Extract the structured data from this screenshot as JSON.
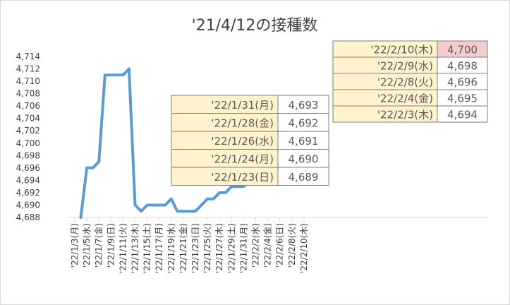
{
  "chart_data": {
    "type": "line",
    "title": "'21/4/12の接種数",
    "xlabel": "",
    "ylabel": "",
    "ylim": [
      4688,
      4714
    ],
    "y_ticks": [
      4688,
      4690,
      4692,
      4694,
      4696,
      4698,
      4700,
      4702,
      4704,
      4706,
      4708,
      4710,
      4712,
      4714
    ],
    "y_tick_labels": [
      "4,688",
      "4,690",
      "4,692",
      "4,694",
      "4,696",
      "4,698",
      "4,700",
      "4,702",
      "4,704",
      "4,706",
      "4,708",
      "4,710",
      "4,712",
      "4,714"
    ],
    "x_tick_labels": [
      "'22/1/3(月)",
      "'22/1/5(水)",
      "'22/1/7(金)",
      "'22/1/9(日)",
      "'22/1/11(火)",
      "'22/1/13(木)",
      "'22/1/15(土)",
      "'22/1/17(月)",
      "'22/1/19(水)",
      "'22/1/21(金)",
      "'22/1/23(日)",
      "'22/1/25(火)",
      "'22/1/27(木)",
      "'22/1/29(土)",
      "'22/1/31(月)",
      "'22/2/2(水)",
      "'22/2/4(金)",
      "'22/2/6(日)",
      "'22/2/8(火)",
      "'22/2/10(木)"
    ],
    "series": [
      {
        "x": [
          "2022-01-04",
          "2022-01-05",
          "2022-01-06",
          "2022-01-07",
          "2022-01-08",
          "2022-01-09",
          "2022-01-10",
          "2022-01-11",
          "2022-01-12",
          "2022-01-13",
          "2022-01-14",
          "2022-01-15",
          "2022-01-16",
          "2022-01-17",
          "2022-01-18",
          "2022-01-19",
          "2022-01-20",
          "2022-01-21",
          "2022-01-22",
          "2022-01-23",
          "2022-01-24",
          "2022-01-25",
          "2022-01-26",
          "2022-01-27",
          "2022-01-28",
          "2022-01-29",
          "2022-01-30",
          "2022-01-31",
          "2022-02-01",
          "2022-02-02",
          "2022-02-03",
          "2022-02-04",
          "2022-02-05",
          "2022-02-06",
          "2022-02-07",
          "2022-02-08",
          "2022-02-09",
          "2022-02-10"
        ],
        "values": [
          4688,
          4696,
          4696,
          4697,
          4711,
          4711,
          4711,
          4711,
          4712,
          4690,
          4689,
          4690,
          4690,
          4690,
          4690,
          4691,
          4689,
          4689,
          4689,
          4689,
          4690,
          4691,
          4691,
          4692,
          4692,
          4693,
          4693,
          4693,
          4694,
          4694,
          4694,
          4695,
          4696,
          4696,
          4696,
          4696,
          4698,
          4700
        ],
        "color": "#5b9bd5"
      }
    ],
    "highlight_point": {
      "x": "2022-02-10",
      "value": 4700,
      "color": "#ff0000"
    },
    "tables": [
      {
        "rows": [
          {
            "label": "'22/2/10(木)",
            "value": "4,700",
            "highlight": true
          },
          {
            "label": "'22/2/9(水)",
            "value": "4,698",
            "highlight": false
          },
          {
            "label": "'22/2/8(火)",
            "value": "4,696",
            "highlight": false
          },
          {
            "label": "'22/2/4(金)",
            "value": "4,695",
            "highlight": false
          },
          {
            "label": "'22/2/3(木)",
            "value": "4,694",
            "highlight": false
          }
        ]
      },
      {
        "rows": [
          {
            "label": "'22/1/31(月)",
            "value": "4,693",
            "highlight": false
          },
          {
            "label": "'22/1/28(金)",
            "value": "4,692",
            "highlight": false
          },
          {
            "label": "'22/1/26(水)",
            "value": "4,691",
            "highlight": false
          },
          {
            "label": "'22/1/24(月)",
            "value": "4,690",
            "highlight": false
          },
          {
            "label": "'22/1/23(日)",
            "value": "4,689",
            "highlight": false
          }
        ]
      }
    ],
    "grid": false,
    "legend": "none",
    "colors": {
      "label_fill": "#fff2cc",
      "highlight_fill": "#f4cccc",
      "value_fill": "#ffffff",
      "table_border": "#7f7f7f"
    }
  }
}
